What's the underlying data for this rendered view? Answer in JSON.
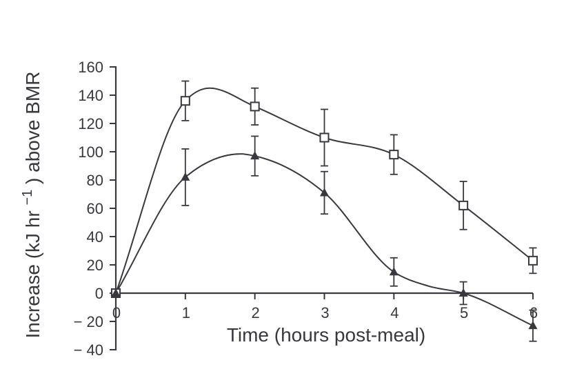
{
  "figure": {
    "xlabel": "Time (hours post-meal)",
    "ylabel_full": "Increase (kJ hr−1) above BMR",
    "ylabel_parts": {
      "prefix": "Increase (kJ hr",
      "superscript": "−1",
      "suffix": ") above BMR"
    }
  },
  "chart_data": {
    "type": "line",
    "title": "",
    "xlabel": "Time (hours post-meal)",
    "ylabel": "Increase (kJ hr^-1) above BMR",
    "xlim": [
      0,
      6
    ],
    "ylim": [
      -40,
      160
    ],
    "x_ticks": [
      0,
      1,
      2,
      3,
      4,
      5,
      6
    ],
    "x_tick_labels": [
      "0",
      "1",
      "2",
      "3",
      "4",
      "5",
      "6"
    ],
    "y_ticks": [
      160,
      140,
      120,
      100,
      80,
      60,
      40,
      20,
      0,
      -20,
      -40
    ],
    "y_tick_labels": [
      "160",
      "140",
      "120",
      "100",
      "80",
      "60",
      "40",
      "20",
      "0",
      "− 20",
      "− 40"
    ],
    "grid": false,
    "legend": "none",
    "error_bars": true,
    "x": [
      0,
      1,
      2,
      3,
      4,
      5,
      6
    ],
    "series": [
      {
        "name": "open-square-series",
        "marker": "open-square",
        "values": [
          0,
          136,
          132,
          110,
          98,
          62,
          23
        ],
        "error": [
          0,
          14,
          13,
          20,
          14,
          17,
          9
        ],
        "curve_points": [
          [
            0,
            0
          ],
          [
            1,
            136
          ],
          [
            1.35,
            145
          ],
          [
            2,
            132
          ],
          [
            3,
            110
          ],
          [
            4,
            98
          ],
          [
            5,
            62
          ],
          [
            6,
            23
          ]
        ]
      },
      {
        "name": "filled-triangle-series",
        "marker": "filled-triangle",
        "values": [
          0,
          82,
          97,
          71,
          15,
          0,
          -23
        ],
        "error": [
          0,
          20,
          14,
          15,
          10,
          8,
          11
        ],
        "curve_points": [
          [
            0,
            0
          ],
          [
            1,
            82
          ],
          [
            1.8,
            98.5
          ],
          [
            2,
            97
          ],
          [
            3,
            71
          ],
          [
            4,
            15
          ],
          [
            4.5,
            5
          ],
          [
            5,
            0
          ],
          [
            6,
            -23
          ]
        ]
      }
    ],
    "colors": {
      "ink": "#38383e",
      "open_marker_fill": "#ffffff",
      "background": "#ffffff"
    }
  }
}
